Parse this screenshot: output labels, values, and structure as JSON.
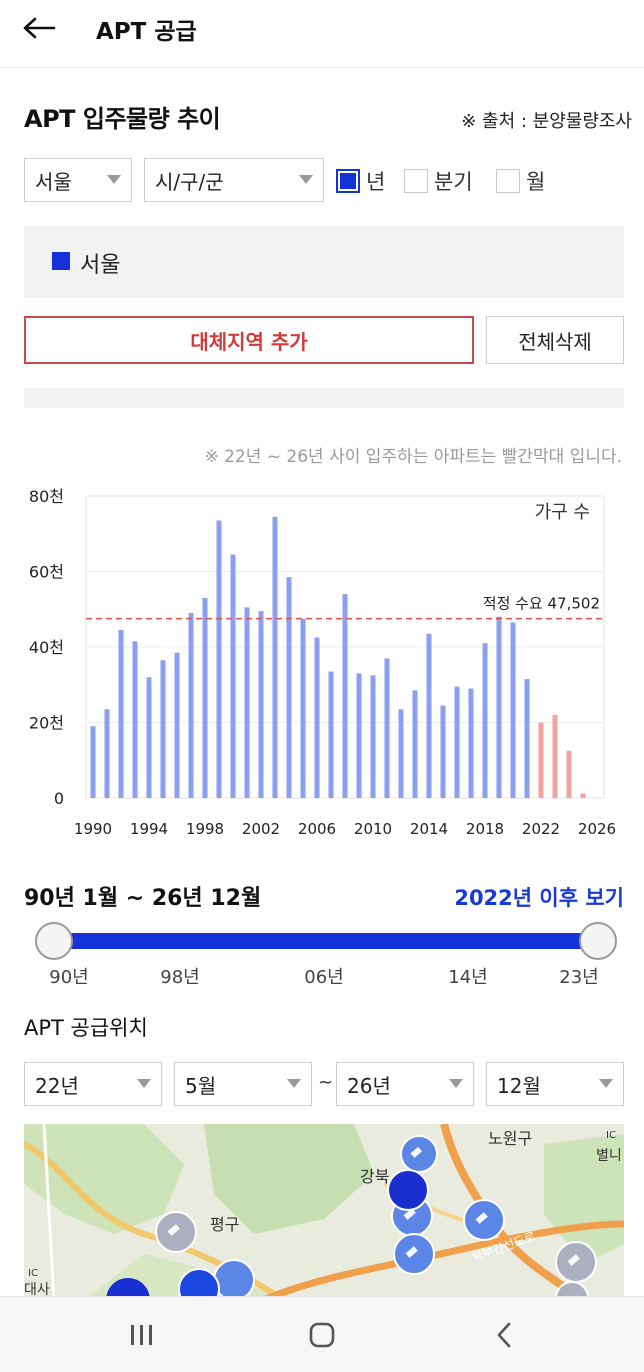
{
  "header": {
    "back_icon": "arrow-left-icon",
    "title": "APT 공급"
  },
  "section": {
    "title": "APT 입주물량 추이",
    "source": "※ 출처 : 분양물량조사"
  },
  "filters": {
    "region": "서울",
    "district": "시/구/군",
    "period_options": [
      {
        "label": "년",
        "checked": true
      },
      {
        "label": "분기",
        "checked": false
      },
      {
        "label": "월",
        "checked": false
      }
    ]
  },
  "legend": {
    "label": "서울",
    "color": "#1532d8"
  },
  "buttons": {
    "add_region": "대체지역 추가",
    "delete_all": "전체삭제"
  },
  "chart_note": "※ 22년 ~ 26년 사이 입주하는 아파트는 빨간막대 입니다.",
  "chart_data": {
    "type": "bar",
    "legend_label": "가구 수",
    "reference_line": {
      "label": "적정 수요 47,502",
      "value": 47502,
      "color": "#e05050"
    },
    "y_ticks": [
      "0",
      "20천",
      "40천",
      "60천",
      "80천"
    ],
    "ylim": [
      0,
      80000
    ],
    "x_ticks": [
      "1990",
      "1994",
      "1998",
      "2002",
      "2006",
      "2010",
      "2014",
      "2018",
      "2022",
      "2026"
    ],
    "xlim": [
      1989.5,
      2026.5
    ],
    "grid": true,
    "series": [
      {
        "color": "#8c9ff0",
        "x": [
          1990,
          1991,
          1992,
          1993,
          1994,
          1995,
          1996,
          1997,
          1998,
          1999,
          2000,
          2001,
          2002,
          2003,
          2004,
          2005,
          2006,
          2007,
          2008,
          2009,
          2010,
          2011,
          2012,
          2013,
          2014,
          2015,
          2016,
          2017,
          2018,
          2019,
          2020,
          2021
        ],
        "values": [
          19000,
          23500,
          44500,
          41500,
          32000,
          36500,
          38500,
          49000,
          53000,
          73500,
          64500,
          50500,
          49500,
          74500,
          58500,
          47500,
          42500,
          33500,
          54000,
          33000,
          32500,
          37000,
          23500,
          28500,
          43500,
          24500,
          29500,
          29000,
          41000,
          48000,
          46500,
          31500
        ]
      },
      {
        "color": "#f2a3a0",
        "x": [
          2022,
          2023,
          2024,
          2025
        ],
        "values": [
          20000,
          22000,
          12500,
          1200
        ]
      }
    ]
  },
  "range": {
    "label": "90년 1월 ~ 26년 12월",
    "after_link": "2022년 이후 보기",
    "ticks": [
      "90년",
      "98년",
      "06년",
      "14년",
      "23년"
    ]
  },
  "location": {
    "title": "APT 공급위치",
    "from_year": "22년",
    "from_month": "5월",
    "separator": "~",
    "to_year": "26년",
    "to_month": "12월"
  },
  "map": {
    "labels": [
      "노원구",
      "강북",
      "평구",
      "북부간선도로",
      "별니",
      "IC",
      "IC",
      "대사"
    ]
  },
  "navbar": {
    "recent_icon": "recent-apps-icon",
    "home_icon": "home-icon",
    "back_icon": "back-chevron-icon"
  }
}
